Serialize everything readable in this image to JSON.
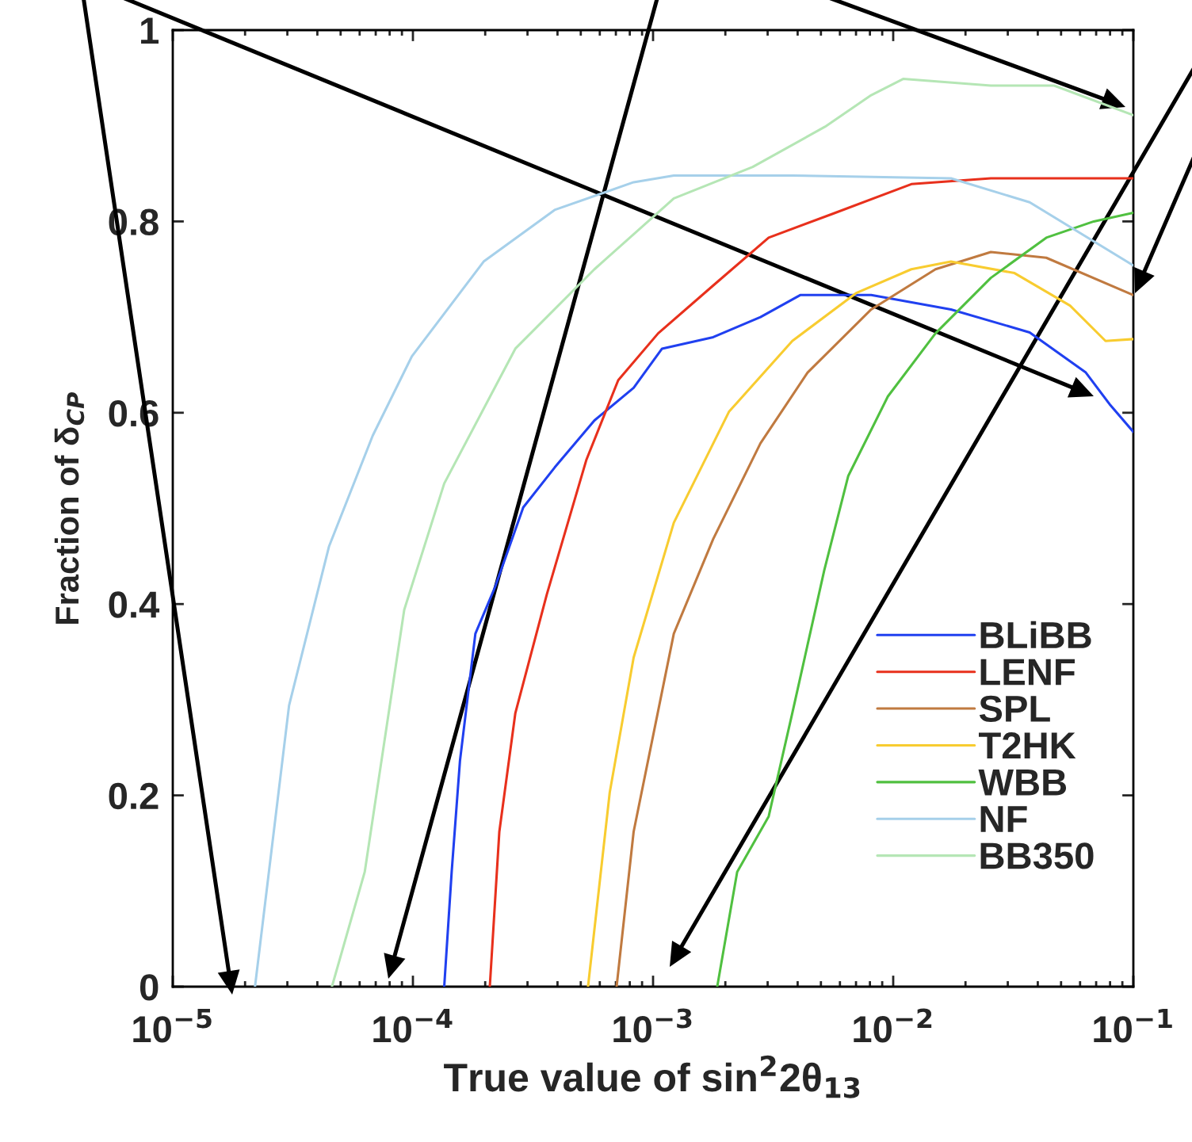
{
  "chart_data": {
    "type": "line",
    "xlabel": "True value of sin$^{2}$2θ$_{13}$",
    "ylabel": "Fraction of δ$_{CP}$",
    "log": "x",
    "xlim": [
      1e-05,
      0.1
    ],
    "ylim": [
      0,
      1
    ],
    "xticks": [
      {
        "value": 1e-05,
        "label": "10$^{−5}$"
      },
      {
        "value": 0.0001,
        "label": "10$^{−4}$"
      },
      {
        "value": 0.001,
        "label": "10$^{−3}$"
      },
      {
        "value": 0.01,
        "label": "10$^{−2}$"
      },
      {
        "value": 0.1,
        "label": "10$^{−1}$"
      }
    ],
    "yticks": [
      0,
      0.2,
      0.4,
      0.6,
      0.8,
      1
    ],
    "grid": false,
    "legend": "bottom right",
    "marker": "none",
    "line_style": "solid",
    "series": [
      {
        "name": "BLiBB",
        "color": "#2040f0",
        "x": [
          0.000135,
          0.000145,
          0.000157,
          0.000182,
          0.00022,
          0.000288,
          0.00039,
          0.00057,
          0.00083,
          0.00109,
          0.00178,
          0.0028,
          0.0041,
          0.0081,
          0.0174,
          0.037,
          0.0634,
          0.0796,
          0.1
        ],
        "values": [
          0,
          0.12,
          0.236,
          0.369,
          0.418,
          0.501,
          0.543,
          0.592,
          0.626,
          0.667,
          0.679,
          0.7,
          0.723,
          0.723,
          0.708,
          0.684,
          0.642,
          0.609,
          0.58
        ]
      },
      {
        "name": "LENF",
        "color": "#e8301c",
        "x": [
          0.000209,
          0.000229,
          0.000267,
          0.000361,
          0.000528,
          0.000716,
          0.00105,
          0.00178,
          0.00303,
          0.0056,
          0.0119,
          0.0255,
          0.1
        ],
        "values": [
          0,
          0.162,
          0.286,
          0.41,
          0.551,
          0.634,
          0.683,
          0.733,
          0.783,
          0.808,
          0.839,
          0.845,
          0.845
        ]
      },
      {
        "name": "SPL",
        "color": "#c07a40",
        "x": [
          0.000705,
          0.00083,
          0.00122,
          0.00178,
          0.0028,
          0.0044,
          0.0081,
          0.015,
          0.0255,
          0.0434,
          0.1
        ],
        "values": [
          0,
          0.162,
          0.369,
          0.468,
          0.568,
          0.642,
          0.708,
          0.75,
          0.768,
          0.762,
          0.723
        ]
      },
      {
        "name": "T2HK",
        "color": "#f8cc30",
        "x": [
          0.000536,
          0.00066,
          0.00083,
          0.00122,
          0.00207,
          0.0038,
          0.007,
          0.0119,
          0.0174,
          0.032,
          0.0545,
          0.0766,
          0.1
        ],
        "values": [
          0,
          0.203,
          0.344,
          0.485,
          0.601,
          0.675,
          0.725,
          0.75,
          0.758,
          0.746,
          0.712,
          0.675,
          0.677
        ]
      },
      {
        "name": "WBB",
        "color": "#50c040",
        "x": [
          0.00185,
          0.00224,
          0.00303,
          0.0038,
          0.00516,
          0.0065,
          0.0095,
          0.015,
          0.0255,
          0.0434,
          0.0684,
          0.1
        ],
        "values": [
          0,
          0.12,
          0.178,
          0.286,
          0.435,
          0.534,
          0.617,
          0.683,
          0.741,
          0.783,
          0.8,
          0.809
        ]
      },
      {
        "name": "NF",
        "color": "#a6d0ea",
        "x": [
          2.2e-05,
          3.05e-05,
          4.47e-05,
          6.8e-05,
          9.9e-05,
          0.000197,
          0.000389,
          0.00083,
          0.00122,
          0.0038,
          0.0174,
          0.037,
          0.1
        ],
        "values": [
          0,
          0.294,
          0.46,
          0.576,
          0.659,
          0.758,
          0.812,
          0.841,
          0.848,
          0.848,
          0.845,
          0.82,
          0.754
        ]
      },
      {
        "name": "BB350",
        "color": "#b5e6b5",
        "x": [
          4.6e-05,
          6.3e-05,
          9.2e-05,
          0.000135,
          0.000267,
          0.00057,
          0.00122,
          0.0026,
          0.0052,
          0.0081,
          0.011,
          0.0255,
          0.0468,
          0.1
        ],
        "values": [
          0,
          0.12,
          0.394,
          0.526,
          0.667,
          0.75,
          0.824,
          0.857,
          0.899,
          0.932,
          0.949,
          0.942,
          0.942,
          0.911
        ]
      }
    ]
  }
}
